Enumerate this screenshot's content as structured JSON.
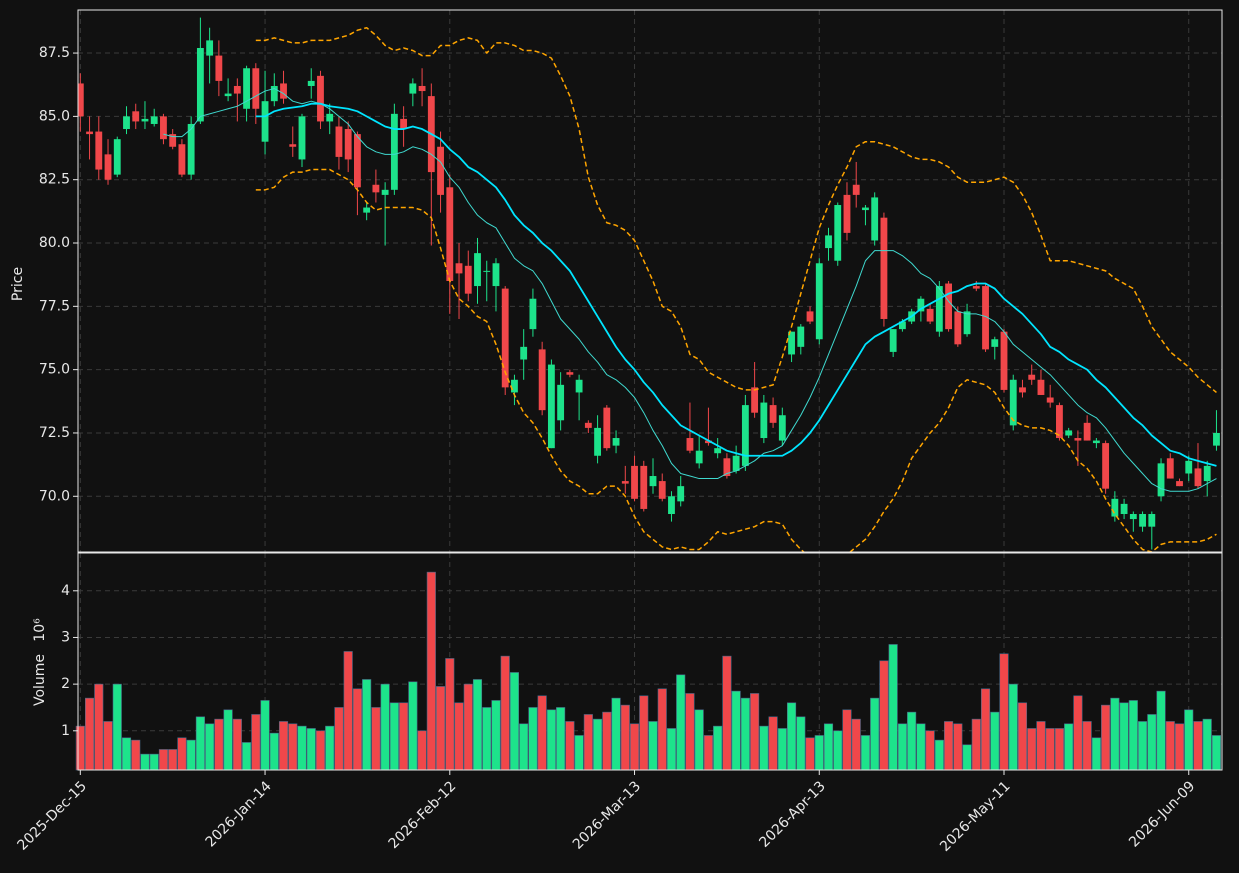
{
  "chart_data": {
    "type": "candlestick",
    "categories": [
      "2025-Dec-15",
      null,
      null,
      null,
      null,
      null,
      null,
      null,
      null,
      null,
      null,
      null,
      null,
      null,
      null,
      null,
      null,
      null,
      null,
      null,
      "2026-Jan-14",
      null,
      null,
      null,
      null,
      null,
      null,
      null,
      null,
      null,
      null,
      null,
      null,
      null,
      null,
      null,
      null,
      null,
      null,
      null,
      "2026-Feb-12",
      null,
      null,
      null,
      null,
      null,
      null,
      null,
      null,
      null,
      null,
      null,
      null,
      null,
      null,
      null,
      null,
      null,
      null,
      null,
      "2026-Mar-13",
      null,
      null,
      null,
      null,
      null,
      null,
      null,
      null,
      null,
      null,
      null,
      null,
      null,
      null,
      null,
      null,
      null,
      null,
      null,
      "2026-Apr-13",
      null,
      null,
      null,
      null,
      null,
      null,
      null,
      null,
      null,
      null,
      null,
      null,
      null,
      null,
      null,
      null,
      null,
      null,
      null,
      "2026-May-11",
      null,
      null,
      null,
      null,
      null,
      null,
      null,
      null,
      null,
      null,
      null,
      null,
      null,
      null,
      null,
      null,
      null,
      null,
      null,
      "2026-Jun-09",
      null,
      null,
      null
    ],
    "xlim": [
      -0.25,
      123.6
    ],
    "ylabel": "Price",
    "ylim": [
      67.8,
      89.2
    ],
    "yticks": [
      {
        "value": 70,
        "label": "70.0"
      },
      72.5,
      {
        "value": 75,
        "label": "75.0"
      },
      77.5,
      {
        "value": 80,
        "label": "80.0"
      },
      82.5,
      {
        "value": 85,
        "label": "85.0"
      },
      87.5
    ],
    "volume_ylabel": "Volume",
    "volume_scale": "10⁶",
    "volume_ylim": [
      0.16,
      4.81
    ],
    "volume_yticks": [
      1,
      2,
      3,
      4
    ],
    "grid": true,
    "up_color": "#1de38b",
    "down_color": "#f0474a",
    "open": [
      86.3,
      84.4,
      84.4,
      83.5,
      82.7,
      84.5,
      85.2,
      84.8,
      84.7,
      85.0,
      84.3,
      83.9,
      82.7,
      84.8,
      87.4,
      87.4,
      85.8,
      86.2,
      85.3,
      86.9,
      84.0,
      85.6,
      86.3,
      83.9,
      83.3,
      86.2,
      86.6,
      84.8,
      84.6,
      84.5,
      84.3,
      81.2,
      82.3,
      81.9,
      82.1,
      84.9,
      85.9,
      86.2,
      85.8,
      83.8,
      82.2,
      79.2,
      79.1,
      78.3,
      78.9,
      78.3,
      78.2,
      74.1,
      75.4,
      76.6,
      75.8,
      71.9,
      73.0,
      74.9,
      74.1,
      72.9,
      71.6,
      73.5,
      72.0,
      70.6,
      71.2,
      71.2,
      70.4,
      70.6,
      69.3,
      69.8,
      72.3,
      71.3,
      72.2,
      71.7,
      71.5,
      71.0,
      71.2,
      74.3,
      72.3,
      73.6,
      72.2,
      75.6,
      75.9,
      77.3,
      76.2,
      79.8,
      79.3,
      81.9,
      82.3,
      81.3,
      80.1,
      81.0,
      75.7,
      76.6,
      76.9,
      77.3,
      77.4,
      76.5,
      78.4,
      77.3,
      76.4,
      78.3,
      78.3,
      75.9,
      76.5,
      72.8,
      74.3,
      74.8,
      74.6,
      73.9,
      73.6,
      72.4,
      72.3,
      72.9,
      72.1,
      72.1,
      69.2,
      69.3,
      69.1,
      68.8,
      68.8,
      70.0,
      71.5,
      70.6,
      70.9,
      71.1,
      70.6,
      72.0
    ],
    "high": [
      86.7,
      85.0,
      85.0,
      84.1,
      84.2,
      85.4,
      85.5,
      85.6,
      85.3,
      85.1,
      84.5,
      84.1,
      85.0,
      88.9,
      88.5,
      88.0,
      86.5,
      86.5,
      87.0,
      87.1,
      86.8,
      86.7,
      86.8,
      84.6,
      85.1,
      86.9,
      86.8,
      85.5,
      85.0,
      84.8,
      84.4,
      81.6,
      82.9,
      82.4,
      85.5,
      85.4,
      86.5,
      86.9,
      86.3,
      84.4,
      82.7,
      80.0,
      79.7,
      80.2,
      79.3,
      79.4,
      78.3,
      74.8,
      76.6,
      78.2,
      76.1,
      75.4,
      74.9,
      75.0,
      74.8,
      73.0,
      73.2,
      73.6,
      72.6,
      71.2,
      71.6,
      71.4,
      71.5,
      70.9,
      70.2,
      70.8,
      73.7,
      72.4,
      73.5,
      72.3,
      71.7,
      72.0,
      74.0,
      75.3,
      74.0,
      73.9,
      73.5,
      76.5,
      76.8,
      77.5,
      79.4,
      80.6,
      81.6,
      82.4,
      83.2,
      81.5,
      82.0,
      81.2,
      76.6,
      77.0,
      77.4,
      77.9,
      77.6,
      78.5,
      78.5,
      77.5,
      77.6,
      78.5,
      78.4,
      76.3,
      76.6,
      74.8,
      74.6,
      75.2,
      75.0,
      74.4,
      73.7,
      72.7,
      72.6,
      73.2,
      72.3,
      72.2,
      70.2,
      69.9,
      69.4,
      69.4,
      69.4,
      71.5,
      71.7,
      70.7,
      71.6,
      72.1,
      71.4,
      73.4
    ],
    "low": [
      84.4,
      83.3,
      82.5,
      82.3,
      82.6,
      84.3,
      84.5,
      84.5,
      84.6,
      83.9,
      83.7,
      82.6,
      82.5,
      84.7,
      86.3,
      85.8,
      85.6,
      84.8,
      84.8,
      84.7,
      83.5,
      85.4,
      85.5,
      83.4,
      83.0,
      85.7,
      84.5,
      84.3,
      82.9,
      82.8,
      81.1,
      80.9,
      81.6,
      79.9,
      81.9,
      83.8,
      85.4,
      85.4,
      79.9,
      81.2,
      77.2,
      77.0,
      77.7,
      77.6,
      77.7,
      77.3,
      74.0,
      73.6,
      74.6,
      76.3,
      73.2,
      71.9,
      72.6,
      74.7,
      73.0,
      72.5,
      71.3,
      71.8,
      71.7,
      70.1,
      69.8,
      69.4,
      70.1,
      69.8,
      69.0,
      69.6,
      71.7,
      71.1,
      72.0,
      71.5,
      70.7,
      70.9,
      71.0,
      73.1,
      72.1,
      72.7,
      72.0,
      75.3,
      75.6,
      76.8,
      76.0,
      79.3,
      79.1,
      80.1,
      81.4,
      80.7,
      79.9,
      76.7,
      75.5,
      76.5,
      76.8,
      76.9,
      76.8,
      76.3,
      76.5,
      75.9,
      76.3,
      78.1,
      75.7,
      75.4,
      74.1,
      72.6,
      73.9,
      74.4,
      74.0,
      73.5,
      72.2,
      72.3,
      71.2,
      72.2,
      71.9,
      70.1,
      69.0,
      69.1,
      68.6,
      68.6,
      67.9,
      69.8,
      70.7,
      70.4,
      70.6,
      70.3,
      70.0,
      71.8
    ],
    "close": [
      85.0,
      84.3,
      82.9,
      82.5,
      84.1,
      85.0,
      84.8,
      84.9,
      85.0,
      84.1,
      83.8,
      82.7,
      84.7,
      87.7,
      88.0,
      86.4,
      85.9,
      85.9,
      86.9,
      85.3,
      85.6,
      86.2,
      85.7,
      83.8,
      85.0,
      86.4,
      84.8,
      85.1,
      83.4,
      83.3,
      82.2,
      81.4,
      82.0,
      82.1,
      85.1,
      84.5,
      86.3,
      86.0,
      82.8,
      81.9,
      78.5,
      78.8,
      78.0,
      79.6,
      78.9,
      79.2,
      74.3,
      74.6,
      75.9,
      77.8,
      73.4,
      75.2,
      74.4,
      74.8,
      74.6,
      72.7,
      72.7,
      71.9,
      72.3,
      70.5,
      69.9,
      69.5,
      70.8,
      69.9,
      70.0,
      70.4,
      71.8,
      71.8,
      72.1,
      71.9,
      70.8,
      71.6,
      73.6,
      73.3,
      73.7,
      72.9,
      73.2,
      76.5,
      76.7,
      76.9,
      79.2,
      80.3,
      81.5,
      80.4,
      81.9,
      81.4,
      81.8,
      77.0,
      76.6,
      76.9,
      77.3,
      77.8,
      76.9,
      78.3,
      76.6,
      76.0,
      77.3,
      78.2,
      75.8,
      76.2,
      74.2,
      74.6,
      74.1,
      74.6,
      74.0,
      73.7,
      72.3,
      72.6,
      72.2,
      72.2,
      72.2,
      70.3,
      69.9,
      69.7,
      69.3,
      69.3,
      69.3,
      71.3,
      70.7,
      70.4,
      71.4,
      70.4,
      71.2,
      72.5
    ],
    "volume": [
      1.1,
      1.7,
      2.0,
      1.2,
      2.0,
      0.85,
      0.8,
      0.5,
      0.5,
      0.6,
      0.6,
      0.85,
      0.8,
      1.3,
      1.15,
      1.25,
      1.45,
      1.25,
      0.75,
      1.35,
      1.65,
      0.95,
      1.2,
      1.15,
      1.1,
      1.05,
      1.0,
      1.1,
      1.5,
      2.7,
      1.9,
      2.1,
      1.5,
      2.0,
      1.6,
      1.6,
      2.05,
      1.0,
      4.4,
      1.95,
      2.55,
      1.6,
      2.0,
      2.1,
      1.5,
      1.65,
      2.6,
      2.25,
      1.15,
      1.5,
      1.75,
      1.45,
      1.5,
      1.2,
      0.9,
      1.35,
      1.25,
      1.4,
      1.7,
      1.55,
      1.15,
      1.75,
      1.2,
      1.9,
      1.05,
      2.2,
      1.8,
      1.45,
      0.9,
      1.1,
      2.6,
      1.85,
      1.7,
      1.8,
      1.1,
      1.3,
      1.05,
      1.6,
      1.3,
      0.85,
      0.9,
      1.15,
      1.0,
      1.45,
      1.25,
      0.9,
      1.7,
      2.5,
      2.85,
      1.15,
      1.4,
      1.15,
      1.0,
      0.8,
      1.2,
      1.15,
      0.7,
      1.25,
      1.9,
      1.4,
      2.65,
      2.0,
      1.6,
      1.05,
      1.2,
      1.05,
      1.05,
      1.15,
      1.75,
      1.2,
      0.85,
      1.55,
      1.7,
      1.6,
      1.65,
      1.2,
      1.35,
      1.85,
      1.2,
      1.15,
      1.45,
      1.2,
      1.25,
      0.9
    ],
    "lines": [
      {
        "color": "#3fd9cf",
        "linewidth": 1,
        "dashed": false,
        "values": [
          null,
          null,
          null,
          null,
          null,
          null,
          null,
          null,
          null,
          84.3,
          84.2,
          84.2,
          84.5,
          85.0,
          85.1,
          85.2,
          85.3,
          85.4,
          85.6,
          85.8,
          86.0,
          86.1,
          85.9,
          85.6,
          85.5,
          85.6,
          85.5,
          85.3,
          85.0,
          84.7,
          84.2,
          83.8,
          83.6,
          83.5,
          83.5,
          83.6,
          83.8,
          83.7,
          83.5,
          83.2,
          82.6,
          82.2,
          81.6,
          81.1,
          80.8,
          80.6,
          80.0,
          79.4,
          79.1,
          78.9,
          78.4,
          77.7,
          77.0,
          76.6,
          76.2,
          75.7,
          75.3,
          74.8,
          74.6,
          74.3,
          73.9,
          73.3,
          72.6,
          72.0,
          71.3,
          70.9,
          70.8,
          70.7,
          70.7,
          70.7,
          70.9,
          71.0,
          71.2,
          71.4,
          71.7,
          71.8,
          72.0,
          72.6,
          73.2,
          73.9,
          74.7,
          75.6,
          76.5,
          77.4,
          78.3,
          79.3,
          79.7,
          79.7,
          79.7,
          79.5,
          79.2,
          78.8,
          78.6,
          78.2,
          77.7,
          77.3,
          77.2,
          77.2,
          77.1,
          76.9,
          76.5,
          76.0,
          75.7,
          75.4,
          75.1,
          74.8,
          74.4,
          74.0,
          73.6,
          73.3,
          73.1,
          72.7,
          72.2,
          71.7,
          71.3,
          70.9,
          70.5,
          70.3,
          70.2,
          70.2,
          70.2,
          70.3,
          70.5,
          70.7
        ]
      },
      {
        "color": "#00e5ff",
        "linewidth": 1.8,
        "dashed": false,
        "values": [
          null,
          null,
          null,
          null,
          null,
          null,
          null,
          null,
          null,
          null,
          null,
          null,
          null,
          null,
          null,
          null,
          null,
          null,
          null,
          85.0,
          85.0,
          85.2,
          85.3,
          85.35,
          85.4,
          85.5,
          85.5,
          85.4,
          85.35,
          85.3,
          85.2,
          85.0,
          84.8,
          84.6,
          84.5,
          84.5,
          84.6,
          84.5,
          84.3,
          84.1,
          83.7,
          83.4,
          83.0,
          82.8,
          82.5,
          82.2,
          81.7,
          81.1,
          80.7,
          80.4,
          80.0,
          79.7,
          79.3,
          78.9,
          78.3,
          77.7,
          77.1,
          76.5,
          75.9,
          75.4,
          75.0,
          74.5,
          74.1,
          73.6,
          73.2,
          72.8,
          72.6,
          72.4,
          72.2,
          72.0,
          71.8,
          71.7,
          71.6,
          71.6,
          71.6,
          71.6,
          71.6,
          71.8,
          72.1,
          72.5,
          73.0,
          73.6,
          74.2,
          74.8,
          75.4,
          76.0,
          76.3,
          76.5,
          76.7,
          76.9,
          77.1,
          77.4,
          77.6,
          77.8,
          78.0,
          78.1,
          78.3,
          78.4,
          78.4,
          78.2,
          77.8,
          77.5,
          77.2,
          76.8,
          76.4,
          75.9,
          75.7,
          75.4,
          75.2,
          75.0,
          74.6,
          74.3,
          73.9,
          73.5,
          73.1,
          72.8,
          72.4,
          72.1,
          71.8,
          71.7,
          71.5,
          71.4,
          71.3,
          71.2
        ]
      },
      {
        "color": "#ffa500",
        "linewidth": 1.5,
        "dashed": true,
        "values": [
          null,
          null,
          null,
          null,
          null,
          null,
          null,
          null,
          null,
          null,
          null,
          null,
          null,
          null,
          null,
          null,
          null,
          null,
          null,
          88.0,
          88.0,
          88.1,
          88.0,
          87.9,
          87.9,
          88.0,
          88.0,
          88.0,
          88.1,
          88.2,
          88.4,
          88.5,
          88.2,
          87.8,
          87.6,
          87.7,
          87.6,
          87.4,
          87.4,
          87.8,
          87.8,
          88.0,
          88.1,
          88.0,
          87.5,
          87.9,
          87.9,
          87.8,
          87.6,
          87.6,
          87.5,
          87.3,
          86.6,
          85.8,
          84.5,
          82.6,
          81.5,
          80.8,
          80.7,
          80.5,
          80.1,
          79.3,
          78.5,
          77.5,
          77.3,
          76.7,
          75.6,
          75.4,
          74.9,
          74.7,
          74.5,
          74.3,
          74.2,
          74.2,
          74.3,
          74.4,
          75.5,
          76.7,
          78.0,
          79.3,
          80.6,
          81.5,
          82.3,
          83.0,
          83.8,
          84.0,
          84.0,
          83.9,
          83.8,
          83.6,
          83.4,
          83.3,
          83.3,
          83.2,
          83.0,
          82.6,
          82.4,
          82.4,
          82.4,
          82.5,
          82.6,
          82.4,
          81.9,
          81.2,
          80.3,
          79.3,
          79.3,
          79.3,
          79.2,
          79.1,
          79.0,
          78.9,
          78.6,
          78.4,
          78.2,
          77.5,
          76.7,
          76.2,
          75.7,
          75.4,
          75.1,
          74.7,
          74.4,
          74.1
        ]
      },
      {
        "color": "#ffa500",
        "linewidth": 1.5,
        "dashed": true,
        "values": [
          null,
          null,
          null,
          null,
          null,
          null,
          null,
          null,
          null,
          null,
          null,
          null,
          null,
          null,
          null,
          null,
          null,
          null,
          null,
          82.1,
          82.1,
          82.2,
          82.6,
          82.8,
          82.8,
          82.9,
          82.9,
          82.9,
          82.7,
          82.5,
          82.1,
          81.6,
          81.3,
          81.4,
          81.4,
          81.4,
          81.4,
          81.3,
          81.0,
          79.8,
          78.5,
          77.8,
          77.5,
          77.1,
          76.9,
          76.0,
          74.9,
          74.0,
          73.3,
          72.9,
          72.3,
          71.6,
          71.0,
          70.6,
          70.4,
          70.1,
          70.1,
          70.4,
          70.4,
          70.0,
          69.2,
          68.6,
          68.3,
          68.0,
          67.9,
          68.0,
          67.9,
          67.9,
          68.2,
          68.6,
          68.5,
          68.6,
          68.7,
          68.8,
          69.0,
          69.0,
          68.9,
          68.3,
          67.9,
          67.6,
          67.4,
          67.3,
          67.4,
          67.7,
          68.0,
          68.3,
          68.8,
          69.4,
          69.9,
          70.6,
          71.5,
          72.0,
          72.5,
          72.9,
          73.5,
          74.3,
          74.6,
          74.5,
          74.4,
          74.1,
          73.5,
          73.0,
          72.8,
          72.7,
          72.7,
          72.6,
          72.4,
          72.0,
          71.4,
          71.1,
          70.6,
          69.9,
          69.3,
          68.8,
          68.3,
          67.9,
          67.8,
          68.1,
          68.2,
          68.2,
          68.2,
          68.2,
          68.3,
          68.5
        ]
      }
    ]
  }
}
